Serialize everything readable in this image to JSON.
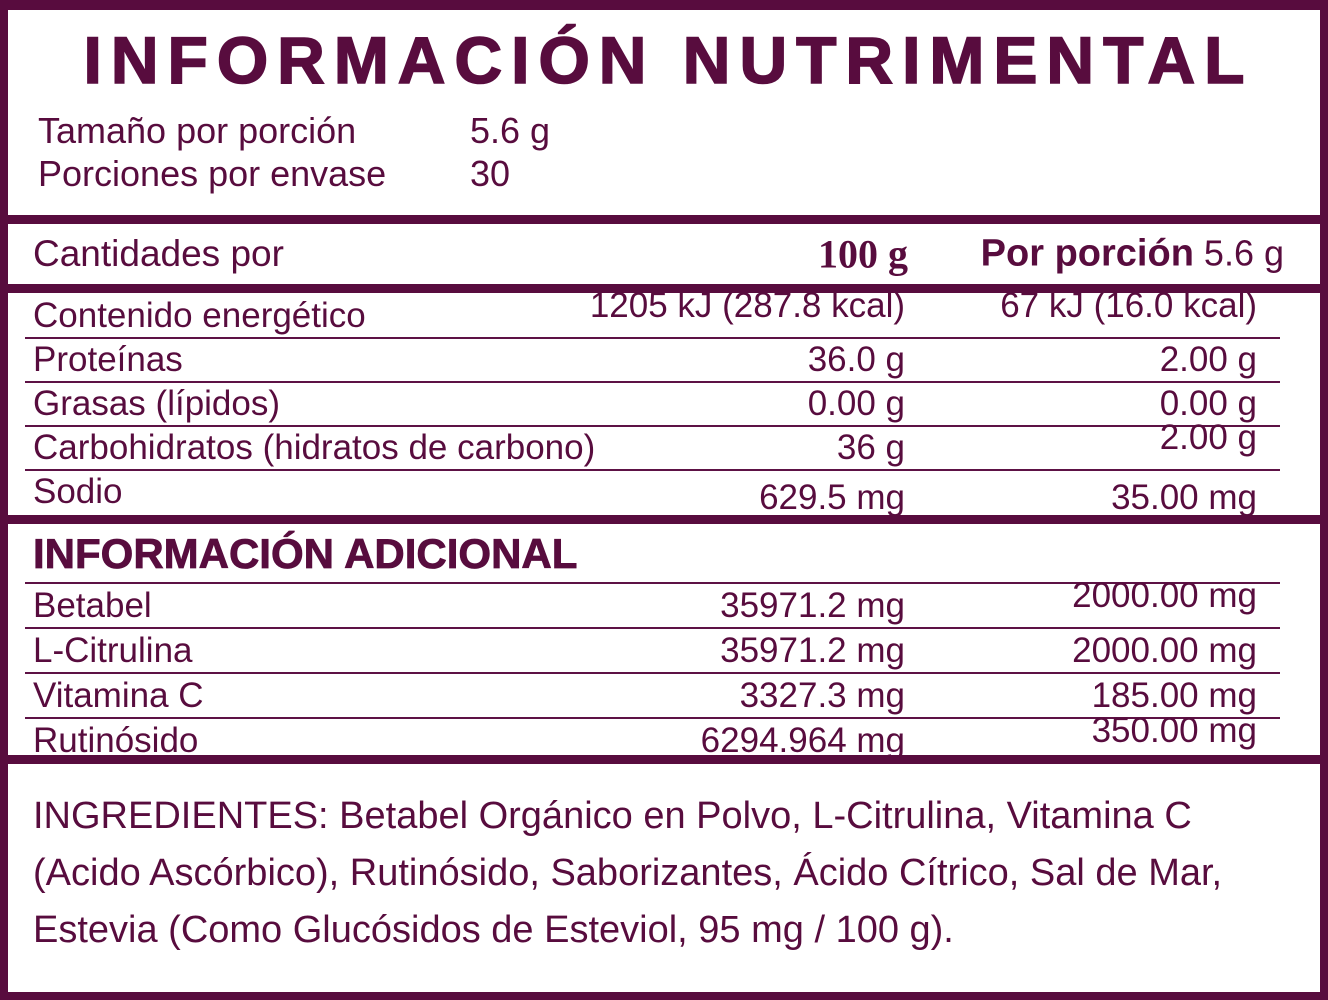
{
  "colors": {
    "plum": "#580C3E",
    "background": "#ffffff"
  },
  "header": {
    "title": "INFORMACIÓN NUTRIMENTAL",
    "serving_size_label": "Tamaño por porción",
    "serving_size_value": "5.6 g",
    "servings_per_container_label": "Porciones por envase",
    "servings_per_container_value": "30"
  },
  "amounts_header": {
    "label": "Cantidades por",
    "col_100g": "100 g",
    "col_portion_label": "Por porción",
    "col_portion_value": "5.6 g"
  },
  "nutrients": {
    "rows": [
      {
        "label": "Contenido energético",
        "per100": "1205 kJ (287.8 kcal)",
        "portion": "67 kJ (16.0 kcal)"
      },
      {
        "label": "Proteínas",
        "per100": "36.0 g",
        "portion": "2.00 g"
      },
      {
        "label": "Grasas (lípidos)",
        "per100": "0.00 g",
        "portion": "0.00 g"
      },
      {
        "label": "Carbohidratos (hidratos de carbono)",
        "per100": "36 g",
        "portion": "2.00 g"
      },
      {
        "label": "Sodio",
        "per100": "629.5 mg",
        "portion": "35.00 mg"
      }
    ]
  },
  "additional": {
    "heading": "INFORMACIÓN ADICIONAL",
    "rows": [
      {
        "label": "Betabel",
        "per100": "35971.2 mg",
        "portion": "2000.00 mg"
      },
      {
        "label": "L-Citrulina",
        "per100": "35971.2 mg",
        "portion": "2000.00 mg"
      },
      {
        "label": "Vitamina C",
        "per100": "3327.3 mg",
        "portion": "185.00 mg"
      },
      {
        "label": "Rutinósido",
        "per100": "6294.964 mg",
        "portion": "350.00 mg"
      }
    ]
  },
  "ingredients": {
    "lines": [
      "INGREDIENTES: Betabel Orgánico en Polvo, L-Citrulina, Vitamina C",
      "(Acido Ascórbico), Rutinósido, Saborizantes, Ácido Cítrico, Sal de Mar,",
      "Estevia (Como Glucósidos de Esteviol, 95 mg / 100 g)."
    ]
  }
}
